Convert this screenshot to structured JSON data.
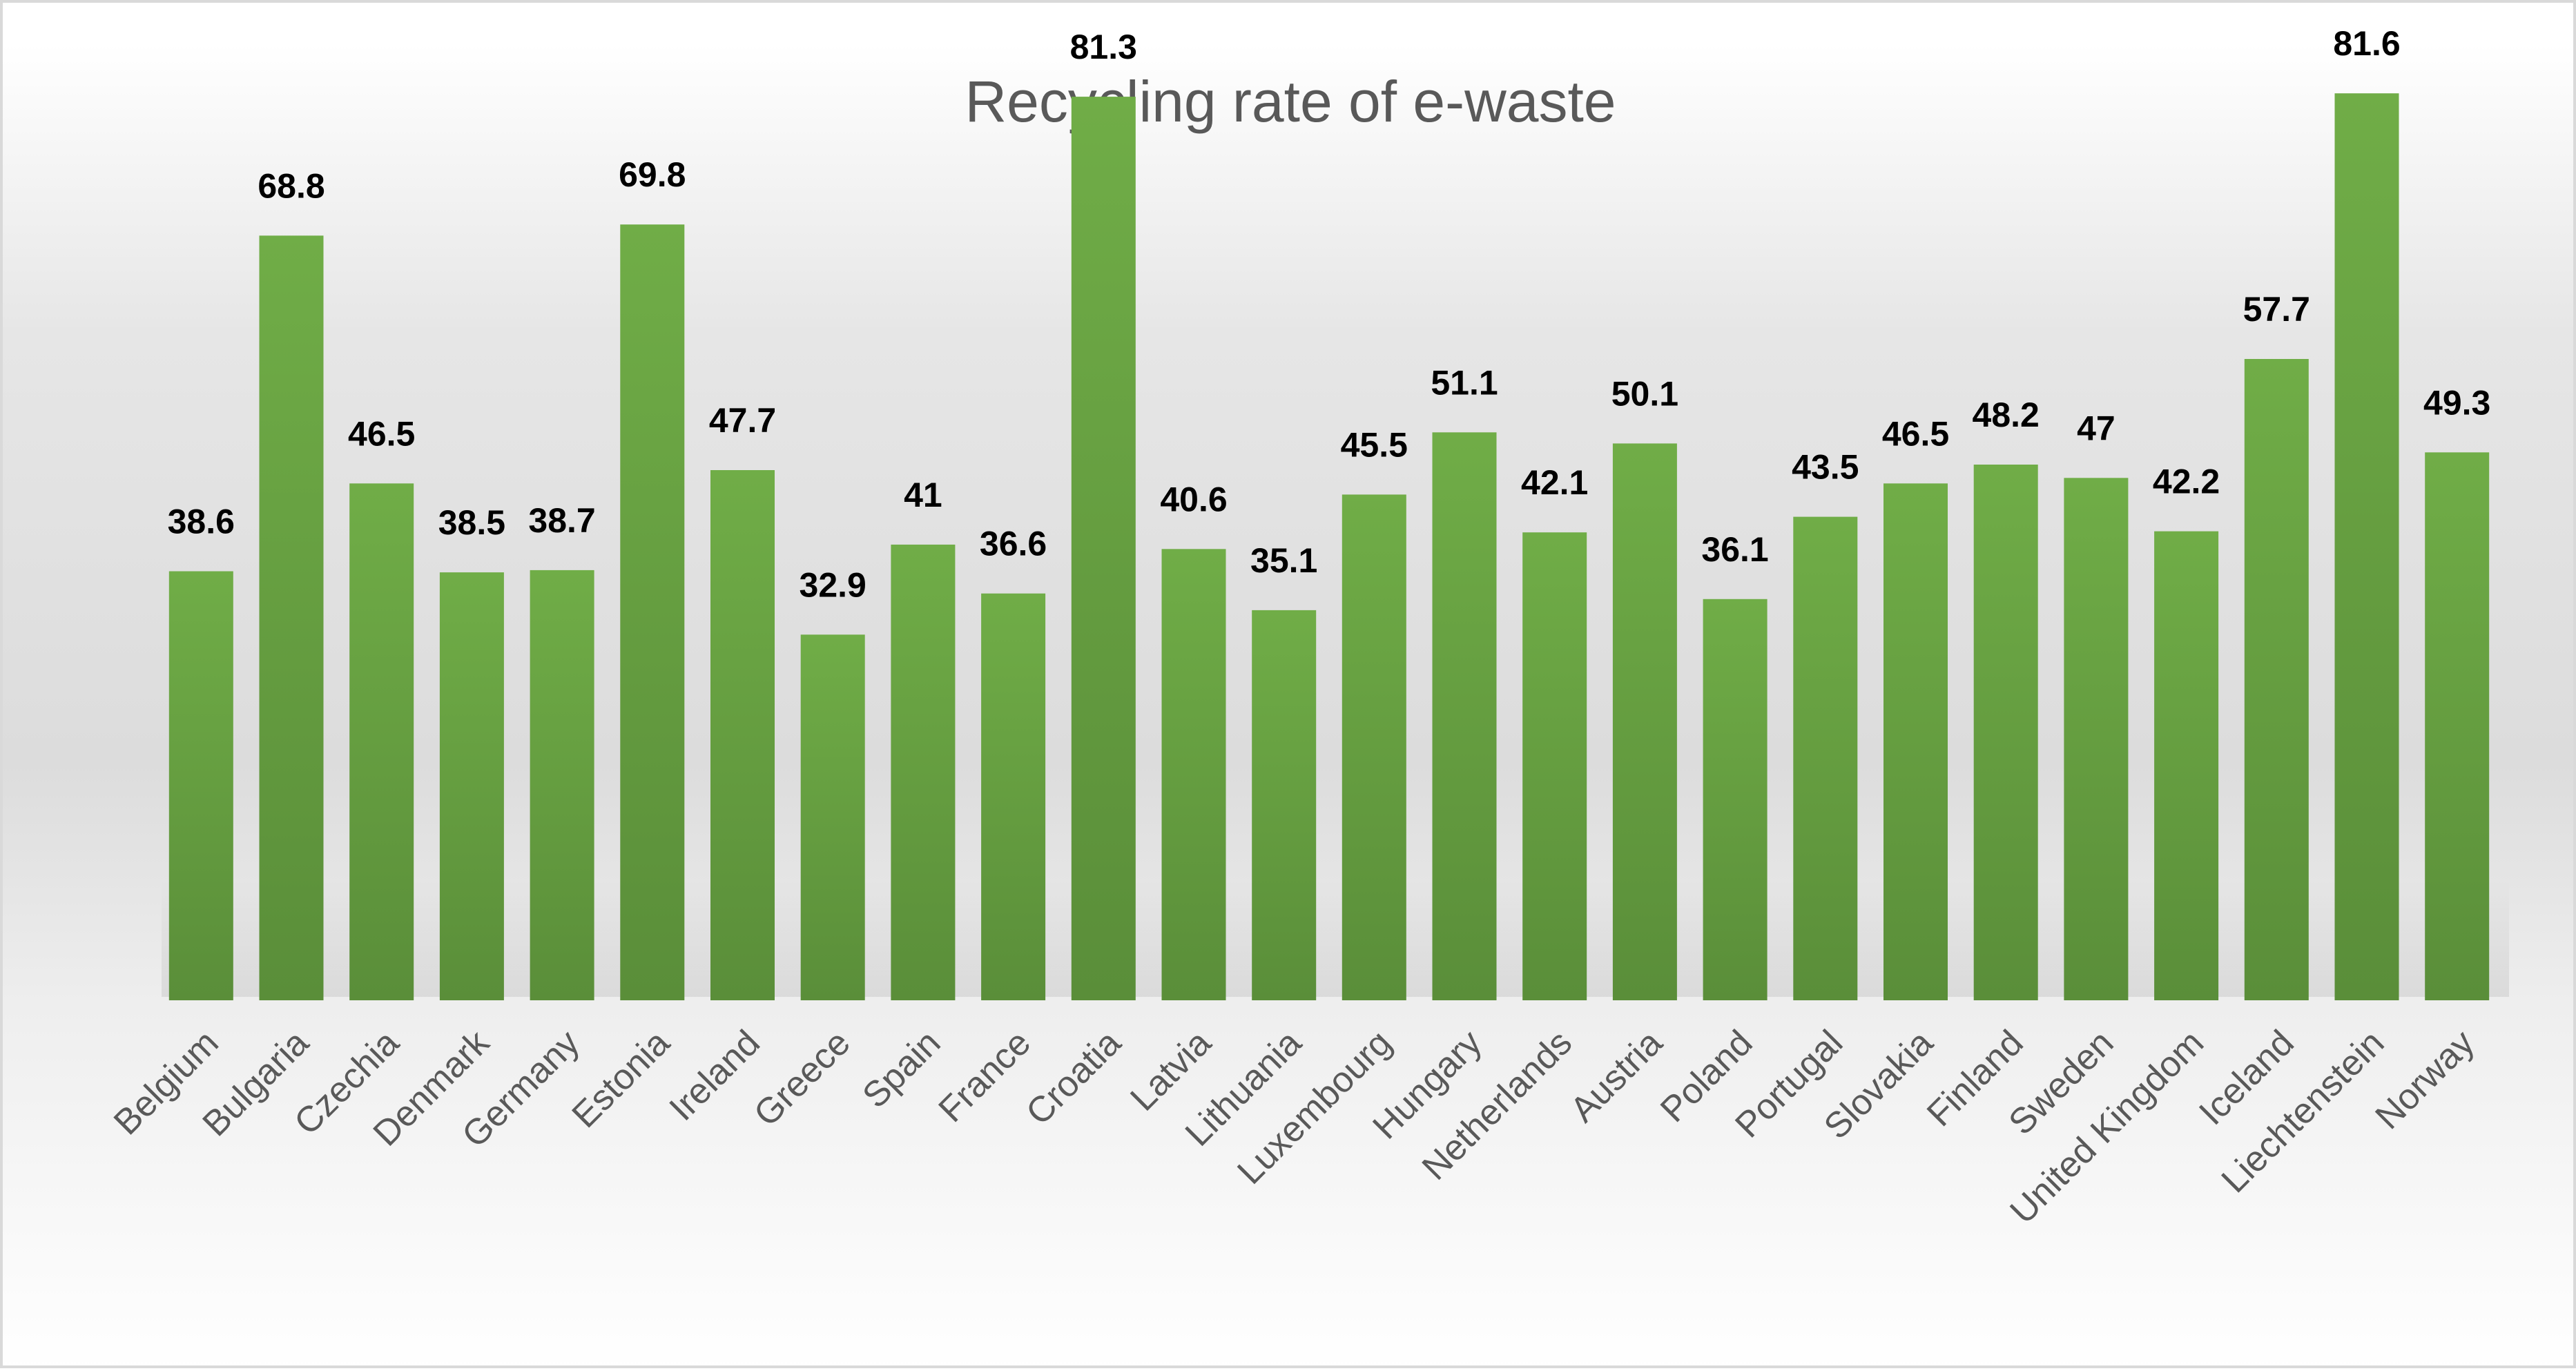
{
  "chart_data": {
    "type": "bar",
    "title": "Recycling rate of e-waste",
    "xlabel": "",
    "ylabel": "",
    "ylim": [
      0,
      90
    ],
    "grid": false,
    "legend": "none",
    "categories": [
      "Belgium",
      "Bulgaria",
      "Czechia",
      "Denmark",
      "Germany",
      "Estonia",
      "Ireland",
      "Greece",
      "Spain",
      "France",
      "Croatia",
      "Latvia",
      "Lithuania",
      "Luxembourg",
      "Hungary",
      "Netherlands",
      "Austria",
      "Poland",
      "Portugal",
      "Slovakia",
      "Finland",
      "Sweden",
      "United Kingdom",
      "Iceland",
      "Liechtenstein",
      "Norway"
    ],
    "values": [
      38.6,
      68.8,
      46.5,
      38.5,
      38.7,
      69.8,
      47.7,
      32.9,
      41,
      36.6,
      81.3,
      40.6,
      35.1,
      45.5,
      51.1,
      42.1,
      50.1,
      36.1,
      43.5,
      46.5,
      48.2,
      47,
      42.2,
      57.7,
      81.6,
      49.3
    ],
    "colors": {
      "bar_top": "#70ad47",
      "bar_bottom": "#5b8f3a",
      "label": "#000000",
      "axis_text": "#595959"
    }
  }
}
